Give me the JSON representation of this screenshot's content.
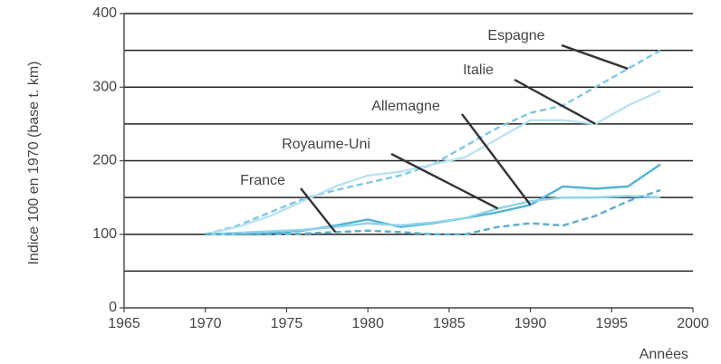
{
  "chart_data": {
    "type": "line",
    "y_label": "Indice 100 en 1970 (base t. km)",
    "x_label": "Années",
    "x": [
      1970,
      1972,
      1974,
      1976,
      1978,
      1980,
      1982,
      1984,
      1986,
      1988,
      1990,
      1992,
      1994,
      1996,
      1998
    ],
    "series": [
      {
        "name": "Espagne",
        "color": "#7cc8e4",
        "style": "dashed",
        "values": [
          100,
          112,
          130,
          148,
          160,
          170,
          180,
          195,
          220,
          245,
          265,
          275,
          300,
          325,
          350
        ]
      },
      {
        "name": "Italie",
        "color": "#b9e2f0",
        "style": "solid",
        "values": [
          100,
          110,
          125,
          145,
          165,
          180,
          185,
          195,
          205,
          230,
          255,
          255,
          250,
          275,
          295
        ]
      },
      {
        "name": "Allemagne",
        "color": "#4fb2d6",
        "style": "solid",
        "values": [
          100,
          101,
          102,
          105,
          112,
          120,
          110,
          115,
          122,
          130,
          140,
          165,
          162,
          165,
          195
        ]
      },
      {
        "name": "Royaume-Uni",
        "color": "#8fd3ea",
        "style": "solid",
        "values": [
          100,
          102,
          104,
          106,
          110,
          115,
          112,
          116,
          122,
          135,
          145,
          150,
          150,
          152,
          150
        ]
      },
      {
        "name": "France",
        "color": "#5aaed0",
        "style": "dashed",
        "values": [
          100,
          100,
          100,
          101,
          103,
          105,
          103,
          100,
          100,
          110,
          115,
          112,
          125,
          145,
          160
        ]
      }
    ],
    "xlim": [
      1965,
      2000
    ],
    "xticks": [
      1965,
      1970,
      1975,
      1980,
      1985,
      1990,
      1995,
      2000
    ],
    "ylim": [
      0,
      400
    ],
    "yticks": [
      0,
      100,
      200,
      300,
      400
    ],
    "minor_grid": [
      50,
      150,
      250,
      350
    ],
    "grid": true
  }
}
